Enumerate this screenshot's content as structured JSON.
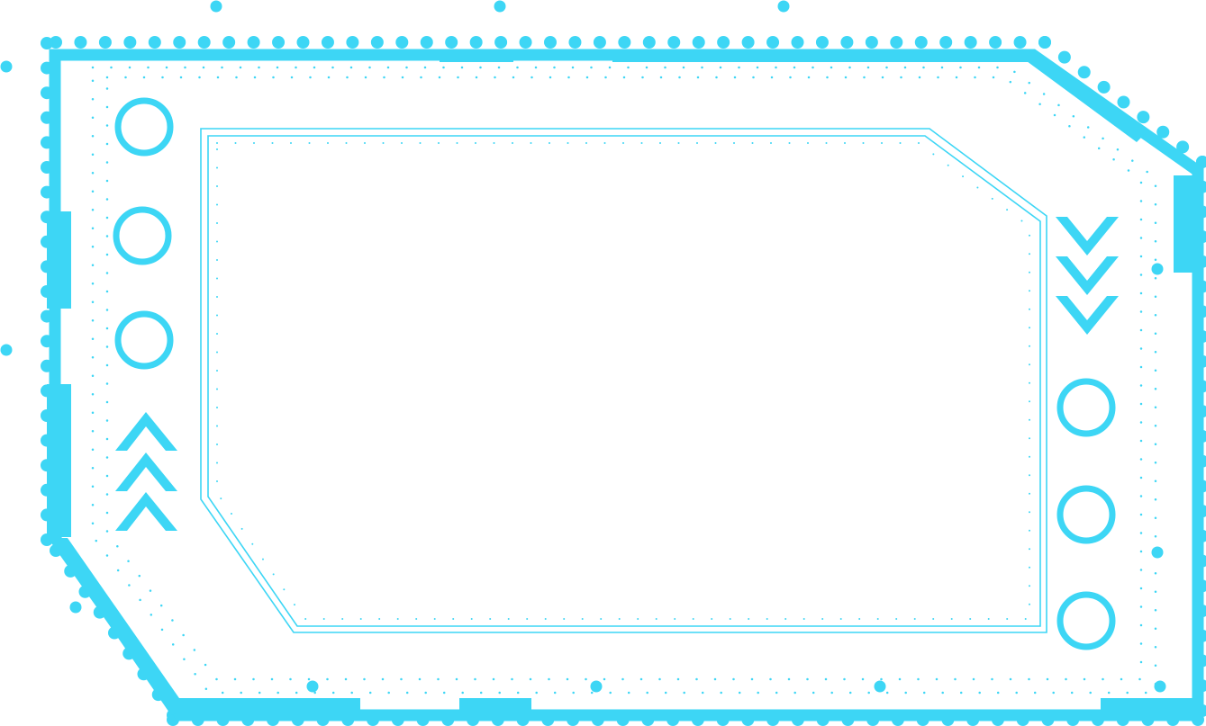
{
  "frame": {
    "accent_color": "#3dd6f5",
    "background_color": "#ffffff",
    "icons": {
      "left_rings": [
        "ring-icon",
        "ring-icon",
        "ring-icon"
      ],
      "left_chevrons": [
        "chevron-up-icon",
        "chevron-up-icon",
        "chevron-up-icon"
      ],
      "right_chevrons": [
        "chevron-down-icon",
        "chevron-down-icon",
        "chevron-down-icon"
      ],
      "right_rings": [
        "ring-icon",
        "ring-icon",
        "ring-icon"
      ]
    }
  }
}
